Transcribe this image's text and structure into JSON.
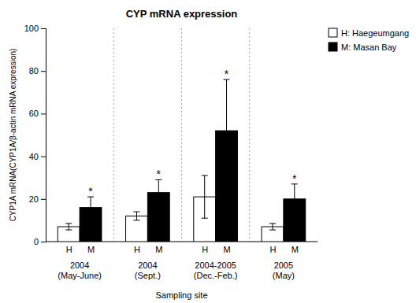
{
  "chart_data": {
    "type": "bar",
    "title": "CYP mRNA expression",
    "xlabel": "Sampling site",
    "ylabel": "CYP1A mRNA(CYP1A/β-actin mRNA expression)",
    "categories": [
      "2004\n(May-June)",
      "2004\n(Sept.)",
      "2004-2005\n(Dec.-Feb.)",
      "2005\n(May)"
    ],
    "series": [
      {
        "name": "H: Haegeumgang",
        "label": "H",
        "color": "white",
        "values": [
          7,
          12,
          21,
          7
        ],
        "errors": [
          1.5,
          2,
          10,
          1.5
        ],
        "annotations": [
          null,
          null,
          null,
          null
        ]
      },
      {
        "name": "M: Masan Bay",
        "label": "M",
        "color": "black",
        "values": [
          16,
          23,
          52,
          20
        ],
        "errors": [
          5,
          6,
          24,
          7
        ],
        "annotations": [
          "*",
          "*",
          "*",
          "*"
        ]
      }
    ],
    "edge_color": "black",
    "ylim": [
      0,
      100
    ],
    "yticks": [
      0,
      20,
      40,
      60,
      80,
      100
    ]
  }
}
